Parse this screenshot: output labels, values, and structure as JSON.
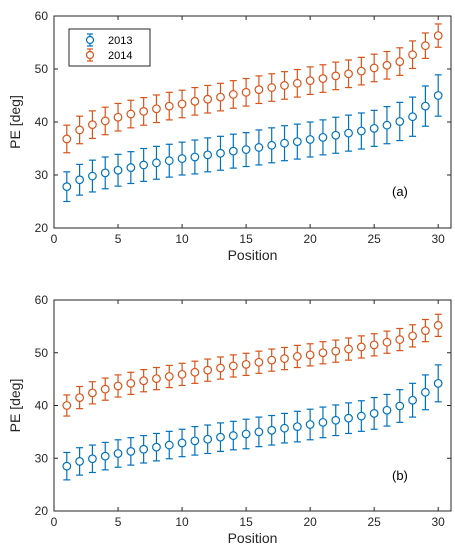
{
  "chart_data": [
    {
      "type": "scatter",
      "panel_label": "(a)",
      "xlabel": "Position",
      "ylabel": "PE [deg]",
      "xlim": [
        0,
        31
      ],
      "ylim": [
        20,
        60
      ],
      "xticks": [
        0,
        5,
        10,
        15,
        20,
        25,
        30
      ],
      "yticks": [
        20,
        30,
        40,
        50,
        60
      ],
      "grid": false,
      "legend": {
        "placement": "top-left",
        "entries": [
          "2013",
          "2014"
        ]
      },
      "x": [
        1,
        2,
        3,
        4,
        5,
        6,
        7,
        8,
        9,
        10,
        11,
        12,
        13,
        14,
        15,
        16,
        17,
        18,
        19,
        20,
        21,
        22,
        23,
        24,
        25,
        26,
        27,
        28,
        29,
        30
      ],
      "series": [
        {
          "name": "2013",
          "color": "#0072BD",
          "values": [
            27.8,
            29.1,
            29.8,
            30.4,
            30.9,
            31.4,
            31.9,
            32.3,
            32.7,
            33.1,
            33.4,
            33.8,
            34.1,
            34.5,
            34.8,
            35.2,
            35.6,
            36.0,
            36.3,
            36.7,
            37.1,
            37.5,
            37.9,
            38.3,
            38.8,
            39.4,
            40.1,
            41.0,
            43.0,
            45.0
          ],
          "errors": [
            2.8,
            2.9,
            3.0,
            3.0,
            3.0,
            3.0,
            3.1,
            3.1,
            3.1,
            3.1,
            3.2,
            3.2,
            3.2,
            3.2,
            3.2,
            3.3,
            3.3,
            3.3,
            3.3,
            3.3,
            3.3,
            3.4,
            3.4,
            3.4,
            3.4,
            3.5,
            3.6,
            3.7,
            3.8,
            3.9
          ]
        },
        {
          "name": "2014",
          "color": "#D95319",
          "values": [
            36.8,
            38.5,
            39.5,
            40.2,
            40.9,
            41.5,
            42.0,
            42.5,
            43.0,
            43.4,
            43.9,
            44.3,
            44.7,
            45.2,
            45.6,
            46.1,
            46.5,
            46.9,
            47.3,
            47.8,
            48.2,
            48.7,
            49.1,
            49.6,
            50.2,
            50.7,
            51.4,
            52.7,
            54.4,
            56.3
          ],
          "errors": [
            2.6,
            2.6,
            2.6,
            2.6,
            2.6,
            2.6,
            2.6,
            2.6,
            2.6,
            2.6,
            2.6,
            2.6,
            2.6,
            2.6,
            2.6,
            2.6,
            2.6,
            2.6,
            2.6,
            2.6,
            2.6,
            2.6,
            2.6,
            2.6,
            2.6,
            2.6,
            2.6,
            2.6,
            2.4,
            2.2
          ]
        }
      ]
    },
    {
      "type": "scatter",
      "panel_label": "(b)",
      "xlabel": "Position",
      "ylabel": "PE [deg]",
      "xlim": [
        0,
        31
      ],
      "ylim": [
        20,
        60
      ],
      "xticks": [
        0,
        5,
        10,
        15,
        20,
        25,
        30
      ],
      "yticks": [
        20,
        30,
        40,
        50,
        60
      ],
      "grid": false,
      "x": [
        1,
        2,
        3,
        4,
        5,
        6,
        7,
        8,
        9,
        10,
        11,
        12,
        13,
        14,
        15,
        16,
        17,
        18,
        19,
        20,
        21,
        22,
        23,
        24,
        25,
        26,
        27,
        28,
        29,
        30
      ],
      "series": [
        {
          "name": "2013",
          "color": "#0072BD",
          "values": [
            28.5,
            29.4,
            29.9,
            30.4,
            30.9,
            31.3,
            31.7,
            32.1,
            32.5,
            32.9,
            33.3,
            33.6,
            34.0,
            34.3,
            34.6,
            35.0,
            35.3,
            35.7,
            36.0,
            36.4,
            36.8,
            37.2,
            37.6,
            38.0,
            38.5,
            39.1,
            39.9,
            41.0,
            42.5,
            44.2
          ],
          "errors": [
            2.6,
            2.6,
            2.6,
            2.6,
            2.6,
            2.6,
            2.6,
            2.6,
            2.6,
            2.6,
            2.7,
            2.7,
            2.7,
            2.7,
            2.8,
            2.8,
            2.8,
            2.8,
            2.9,
            2.9,
            2.9,
            2.9,
            2.9,
            2.9,
            3.0,
            3.0,
            3.1,
            3.2,
            3.3,
            3.5
          ]
        },
        {
          "name": "2014",
          "color": "#D95319",
          "values": [
            40.0,
            41.5,
            42.4,
            43.1,
            43.7,
            44.2,
            44.7,
            45.1,
            45.5,
            45.9,
            46.3,
            46.7,
            47.1,
            47.5,
            47.8,
            48.2,
            48.6,
            48.9,
            49.3,
            49.6,
            50.0,
            50.3,
            50.7,
            51.1,
            51.5,
            52.0,
            52.5,
            53.2,
            54.2,
            55.2
          ],
          "errors": [
            2.0,
            2.1,
            2.1,
            2.1,
            2.1,
            2.1,
            2.1,
            2.1,
            2.1,
            2.1,
            2.1,
            2.1,
            2.1,
            2.1,
            2.1,
            2.1,
            2.1,
            2.1,
            2.1,
            2.1,
            2.1,
            2.1,
            2.1,
            2.1,
            2.1,
            2.1,
            2.1,
            2.1,
            2.1,
            2.1
          ]
        }
      ]
    }
  ]
}
